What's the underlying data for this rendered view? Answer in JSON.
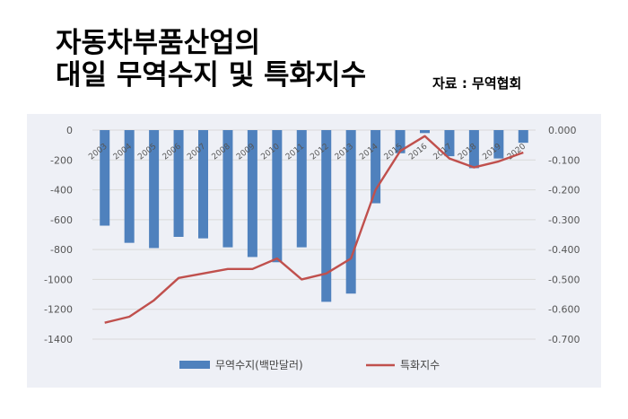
{
  "header": {
    "title_line1": "자동차부품산업의",
    "title_line2": "대일 무역수지 및 특화지수",
    "source": "자료 : 무역협회"
  },
  "chart_data": {
    "type": "bar+line",
    "categories": [
      "2003",
      "2004",
      "2005",
      "2006",
      "2007",
      "2008",
      "2009",
      "2010",
      "2011",
      "2012",
      "2013",
      "2014",
      "2015",
      "2016",
      "2017",
      "2018",
      "2019",
      "2020"
    ],
    "series": [
      {
        "name": "무역수지(백만달러)",
        "type": "bar",
        "axis": "left",
        "color": "#4f81bd",
        "values": [
          -640,
          -755,
          -790,
          -715,
          -725,
          -785,
          -850,
          -885,
          -785,
          -1150,
          -1095,
          -490,
          -155,
          -20,
          -175,
          -255,
          -190,
          -85
        ]
      },
      {
        "name": "특화지수",
        "type": "line",
        "axis": "right",
        "color": "#c0504d",
        "values": [
          -0.645,
          -0.625,
          -0.57,
          -0.495,
          -0.48,
          -0.465,
          -0.465,
          -0.43,
          -0.5,
          -0.48,
          -0.43,
          -0.2,
          -0.07,
          -0.02,
          -0.095,
          -0.125,
          -0.105,
          -0.075
        ]
      }
    ],
    "y_left": {
      "range": [
        -1400,
        0
      ],
      "ticks": [
        0,
        -200,
        -400,
        -600,
        -800,
        -1000,
        -1200,
        -1400
      ],
      "tick_labels": [
        "0",
        "-200",
        "-400",
        "-600",
        "-800",
        "-1000",
        "-1200",
        "-1400"
      ]
    },
    "y_right": {
      "range": [
        -0.7,
        0
      ],
      "ticks": [
        0,
        -0.1,
        -0.2,
        -0.3,
        -0.4,
        -0.5,
        -0.6,
        -0.7
      ],
      "tick_labels": [
        "0.000",
        "-0.100",
        "-0.200",
        "-0.300",
        "-0.400",
        "-0.500",
        "-0.600",
        "-0.700"
      ]
    },
    "grid": true,
    "legend": "bottom"
  }
}
